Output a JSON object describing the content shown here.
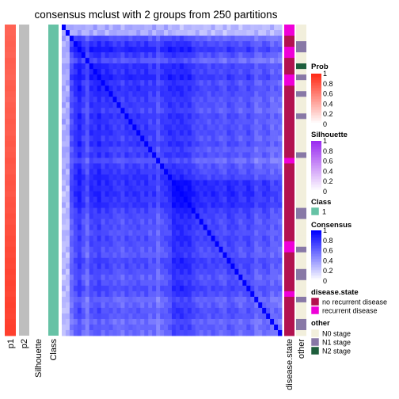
{
  "chart_data": {
    "type": "heatmap",
    "title": "consensus mclust with 2 groups from 250 partitions",
    "n_samples": 56,
    "column_labels": [
      "p1",
      "p2",
      "Silhouette",
      "Class"
    ],
    "row_annotation_labels": [
      "disease.state",
      "other"
    ],
    "colors": {
      "prob_high": "#ff2b17",
      "prob_low": "#ffffff",
      "p2": "#bebebe",
      "class_1": "#66c2a5",
      "consensus_high": "#0000ff",
      "consensus_low": "#ffffff",
      "silhouette_high": "#9a2cf0",
      "disease_no": "#b2124f",
      "disease_yes": "#ef00d8",
      "other_n0": "#f2efdc",
      "other_n1": "#8878a6",
      "other_n2": "#1e5e3c"
    },
    "p1_values": [
      0.74,
      0.73,
      0.74,
      0.75,
      0.74,
      0.73,
      0.76,
      0.75,
      0.74,
      0.73,
      0.76,
      0.77,
      0.75,
      0.74,
      0.76,
      0.77,
      0.76,
      0.78,
      0.77,
      0.76,
      0.78,
      0.79,
      0.77,
      0.78,
      0.8,
      0.79,
      0.78,
      0.8,
      0.81,
      0.8,
      0.79,
      0.81,
      0.82,
      0.81,
      0.83,
      0.82,
      0.84,
      0.83,
      0.85,
      0.84,
      0.86,
      0.85,
      0.87,
      0.86,
      0.88,
      0.87,
      0.89,
      0.88,
      0.87,
      0.89,
      0.9,
      0.89,
      0.88,
      0.9,
      0.91,
      0.9
    ],
    "consensus_levels": [
      0.85,
      0.85,
      0.55,
      0.75,
      0.9,
      0.7,
      0.5,
      0.8,
      0.78,
      0.88,
      0.72,
      0.8,
      0.75,
      0.68,
      0.7,
      0.62,
      0.75,
      0.7,
      0.72,
      0.74,
      0.66,
      0.75,
      0.62,
      0.7,
      0.5,
      0.68,
      0.72,
      0.8,
      0.9,
      0.88,
      0.92,
      0.85,
      0.88,
      0.75,
      0.7,
      0.65,
      0.68,
      0.62,
      0.7,
      0.66,
      0.6,
      0.58,
      0.72,
      0.7,
      0.64,
      0.55,
      0.6,
      0.7,
      0.62,
      0.45,
      0.5,
      0.6,
      0.58,
      0.42,
      0.5,
      0.45
    ],
    "disease_state": [
      "yes",
      "yes",
      "no",
      "no",
      "yes",
      "yes",
      "no",
      "no",
      "no",
      "yes",
      "yes",
      "no",
      "no",
      "no",
      "no",
      "no",
      "no",
      "no",
      "no",
      "no",
      "no",
      "no",
      "no",
      "no",
      "yes",
      "no",
      "no",
      "no",
      "no",
      "no",
      "no",
      "no",
      "no",
      "no",
      "no",
      "no",
      "no",
      "no",
      "no",
      "yes",
      "yes",
      "no",
      "no",
      "no",
      "no",
      "no",
      "no",
      "no",
      "yes",
      "no",
      "no",
      "no",
      "no",
      "no",
      "no",
      "no"
    ],
    "other": [
      "N0",
      "N0",
      "N0",
      "N1",
      "N1",
      "N0",
      "N0",
      "N2",
      "N0",
      "N1",
      "N0",
      "N0",
      "N1",
      "N0",
      "N0",
      "N0",
      "N1",
      "N0",
      "N0",
      "N0",
      "N0",
      "N0",
      "N0",
      "N1",
      "N0",
      "N0",
      "N0",
      "N0",
      "N0",
      "N0",
      "N0",
      "N0",
      "N0",
      "N1",
      "N1",
      "N0",
      "N0",
      "N0",
      "N0",
      "N0",
      "N1",
      "N0",
      "N0",
      "N0",
      "N1",
      "N1",
      "N0",
      "N0",
      "N0",
      "N1",
      "N0",
      "N0",
      "N0",
      "N1",
      "N1",
      "N0"
    ],
    "legends": [
      {
        "title": "Prob",
        "ticks": [
          "1",
          "0.8",
          "0.6",
          "0.4",
          "0.2",
          "0"
        ]
      },
      {
        "title": "Silhouette",
        "ticks": [
          "1",
          "0.8",
          "0.6",
          "0.4",
          "0.2",
          "0"
        ]
      },
      {
        "title": "Class",
        "items": [
          "1"
        ]
      },
      {
        "title": "Consensus",
        "ticks": [
          "1",
          "0.8",
          "0.6",
          "0.4",
          "0.2",
          "0"
        ]
      },
      {
        "title": "disease.state",
        "items": [
          "no recurrent disease",
          "recurrent disease"
        ]
      },
      {
        "title": "other",
        "items": [
          "N0 stage",
          "N1 stage",
          "N2 stage"
        ]
      }
    ]
  }
}
